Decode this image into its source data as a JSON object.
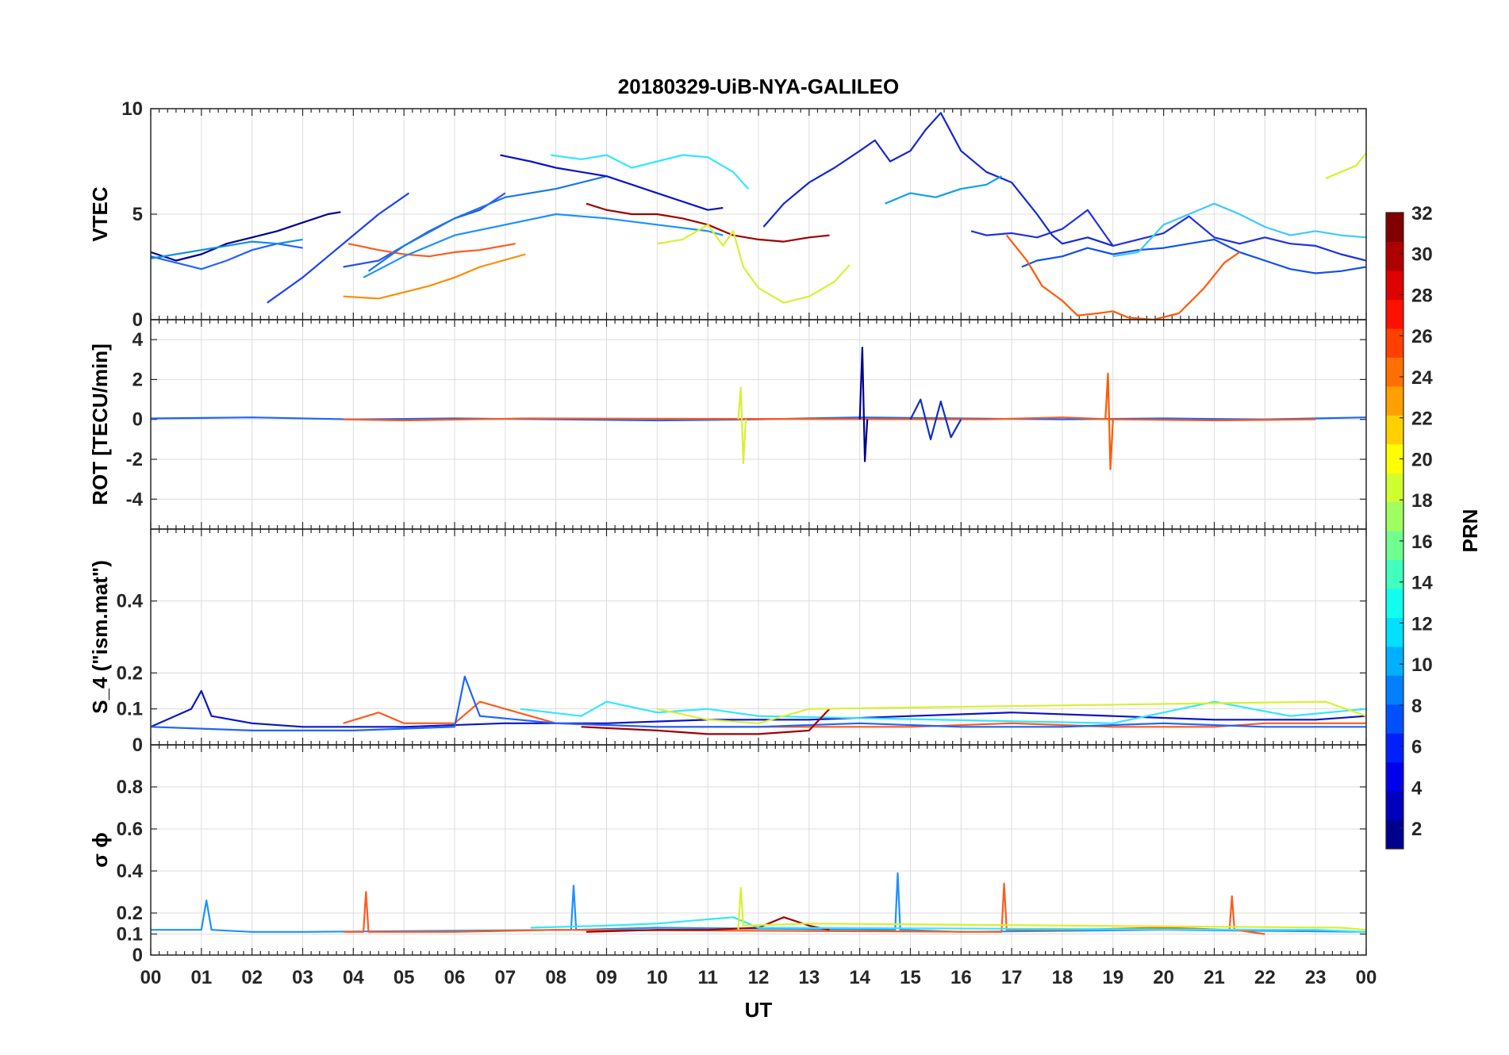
{
  "title": "20180329-UiB-NYA-GALILEO",
  "chart_data": [
    {
      "type": "line",
      "id": "vtec",
      "ylabel": "VTEC",
      "ylim": [
        0,
        10
      ],
      "yticks": [
        0,
        5,
        10
      ],
      "grid": true,
      "series": [
        {
          "color": "#00008f",
          "x": [
            0.0,
            0.5,
            1.0,
            1.5,
            2.0,
            2.5,
            3.0,
            3.5,
            3.75
          ],
          "y": [
            3.2,
            2.8,
            3.1,
            3.6,
            3.9,
            4.2,
            4.6,
            5.0,
            5.1
          ]
        },
        {
          "color": "#1e64ff",
          "x": [
            0.0,
            0.5,
            1.0,
            1.5,
            2.0,
            2.5,
            3.0
          ],
          "y": [
            3.0,
            2.7,
            2.4,
            2.8,
            3.3,
            3.6,
            3.4
          ]
        },
        {
          "color": "#1090e0",
          "x": [
            0.0,
            0.5,
            1.0,
            1.5,
            2.0,
            2.5,
            3.0
          ],
          "y": [
            2.9,
            3.1,
            3.3,
            3.5,
            3.7,
            3.6,
            3.8
          ]
        },
        {
          "color": "#1a40ff",
          "x": [
            2.3,
            3.0,
            3.5,
            4.0,
            4.5,
            5.1
          ],
          "y": [
            0.8,
            2.0,
            3.0,
            4.0,
            5.0,
            6.0
          ]
        },
        {
          "color": "#3050f0",
          "x": [
            3.8,
            4.5,
            5.0,
            5.5,
            6.0,
            6.5,
            7.0
          ],
          "y": [
            2.5,
            2.8,
            3.5,
            4.2,
            4.8,
            5.2,
            6.0
          ]
        },
        {
          "color": "#ff5a1e",
          "x": [
            3.9,
            4.5,
            5.0,
            5.5,
            6.0,
            6.5,
            7.2
          ],
          "y": [
            3.6,
            3.3,
            3.1,
            3.0,
            3.2,
            3.3,
            3.6
          ]
        },
        {
          "color": "#ff8c00",
          "x": [
            3.8,
            4.5,
            5.0,
            5.5,
            6.0,
            6.5,
            7.4
          ],
          "y": [
            1.1,
            1.0,
            1.3,
            1.6,
            2.0,
            2.5,
            3.1
          ]
        },
        {
          "color": "#1e90ff",
          "x": [
            4.2,
            5.0,
            6.0,
            7.0,
            8.0,
            9.0,
            10.0,
            11.0,
            11.3
          ],
          "y": [
            2.0,
            3.0,
            4.0,
            4.5,
            5.0,
            4.8,
            4.5,
            4.2,
            4.0
          ]
        },
        {
          "color": "#1878e8",
          "x": [
            4.3,
            5.0,
            6.0,
            7.0,
            8.0,
            9.0
          ],
          "y": [
            2.3,
            3.5,
            4.8,
            5.8,
            6.2,
            6.8
          ]
        },
        {
          "color": "#0a14c8",
          "x": [
            6.9,
            7.5,
            8.0,
            8.5,
            9.0,
            10.0,
            11.0,
            11.3
          ],
          "y": [
            7.8,
            7.5,
            7.2,
            7.0,
            6.8,
            6.0,
            5.2,
            5.3
          ]
        },
        {
          "color": "#32e6ff",
          "x": [
            7.9,
            8.5,
            9.0,
            9.5,
            10.0,
            10.5,
            11.0,
            11.5,
            11.8
          ],
          "y": [
            7.8,
            7.6,
            7.8,
            7.2,
            7.5,
            7.8,
            7.7,
            7.0,
            6.2
          ]
        },
        {
          "color": "#a00000",
          "x": [
            8.6,
            9.0,
            9.5,
            10.0,
            10.5,
            11.0,
            11.5,
            12.0,
            12.5,
            13.0,
            13.4
          ],
          "y": [
            5.5,
            5.2,
            5.0,
            5.0,
            4.8,
            4.5,
            4.0,
            3.8,
            3.7,
            3.9,
            4.0
          ]
        },
        {
          "color": "#d8f032",
          "x": [
            10.0,
            10.5,
            11.0,
            11.3,
            11.5,
            11.7,
            12.0,
            12.5,
            13.0,
            13.5,
            13.8
          ],
          "y": [
            3.6,
            3.8,
            4.5,
            3.5,
            4.2,
            2.5,
            1.5,
            0.8,
            1.1,
            1.8,
            2.6
          ]
        },
        {
          "color": "#1428d2",
          "x": [
            12.1,
            12.5,
            13.0,
            13.5,
            14.0,
            14.3,
            14.6,
            15.0,
            15.3,
            15.6,
            16.0,
            16.5,
            17.0,
            17.5,
            17.8,
            18.0,
            18.5,
            19.0
          ],
          "y": [
            4.4,
            5.5,
            6.5,
            7.2,
            8.0,
            8.5,
            7.5,
            8.0,
            9.0,
            9.8,
            8.0,
            7.0,
            6.5,
            5.0,
            4.0,
            3.6,
            3.9,
            3.5
          ]
        },
        {
          "color": "#10a0e8",
          "x": [
            14.5,
            15.0,
            15.5,
            16.0,
            16.5,
            16.8
          ],
          "y": [
            5.5,
            6.0,
            5.8,
            6.2,
            6.4,
            6.8
          ]
        },
        {
          "color": "#2030e0",
          "x": [
            16.2,
            16.5,
            17.0,
            17.5,
            18.0,
            18.5,
            19.0,
            19.5,
            20.0,
            20.5,
            21.0,
            21.5,
            22.0,
            22.5,
            23.0,
            23.5,
            24.0
          ],
          "y": [
            4.2,
            4.0,
            4.1,
            3.9,
            4.3,
            5.2,
            3.5,
            3.8,
            4.1,
            4.9,
            3.9,
            3.6,
            3.9,
            3.6,
            3.5,
            3.1,
            2.8
          ]
        },
        {
          "color": "#1050f0",
          "x": [
            17.2,
            17.5,
            18.0,
            18.5,
            19.0,
            19.5,
            20.0,
            20.5,
            21.0,
            21.5,
            22.0,
            22.5,
            23.0,
            23.5,
            24.0
          ],
          "y": [
            2.5,
            2.8,
            3.0,
            3.4,
            3.1,
            3.3,
            3.4,
            3.6,
            3.8,
            3.2,
            2.8,
            2.4,
            2.2,
            2.3,
            2.5
          ]
        },
        {
          "color": "#40c8ff",
          "x": [
            19.0,
            19.5,
            20.0,
            20.5,
            21.0,
            21.5,
            22.0,
            22.5,
            23.0,
            23.5,
            24.0
          ],
          "y": [
            3.0,
            3.2,
            4.5,
            5.0,
            5.5,
            5.0,
            4.4,
            4.0,
            4.2,
            4.0,
            3.9
          ]
        },
        {
          "color": "#ff5a00",
          "x": [
            16.9,
            17.3,
            17.6,
            18.0,
            18.3,
            18.7,
            19.0,
            19.3,
            19.8,
            20.3,
            20.8,
            21.2,
            21.5
          ],
          "y": [
            4.0,
            2.8,
            1.6,
            0.9,
            0.2,
            0.3,
            0.4,
            0.1,
            0.0,
            0.3,
            1.5,
            2.7,
            3.2
          ]
        },
        {
          "color": "#d8f032",
          "x": [
            23.2,
            23.5,
            23.8,
            24.0
          ],
          "y": [
            6.7,
            7.0,
            7.3,
            7.9
          ]
        }
      ]
    },
    {
      "type": "line",
      "id": "rot",
      "ylabel": "ROT [TECU/min]",
      "ylim": [
        -5.5,
        5.0
      ],
      "yticks": [
        -4,
        -2,
        0,
        2,
        4
      ],
      "grid": true,
      "series": [
        {
          "color": "#1e64ff",
          "x": [
            0.0,
            2.0,
            4.0,
            6.0,
            8.0,
            10.0,
            12.0,
            14.0,
            16.0,
            18.0,
            20.0,
            22.0,
            24.0
          ],
          "y": [
            0.05,
            0.1,
            0.0,
            0.05,
            0.0,
            -0.05,
            0.0,
            0.1,
            0.05,
            0.0,
            0.05,
            0.0,
            0.1
          ]
        },
        {
          "color": "#ff5a1e",
          "x": [
            3.8,
            5.0,
            7.4,
            16.5,
            18.0,
            19.0,
            21.0,
            23.0
          ],
          "y": [
            0.0,
            -0.05,
            0.05,
            0.0,
            0.1,
            0.0,
            -0.05,
            0.0
          ]
        },
        {
          "color": "#00008f",
          "x": [
            14.0,
            14.05,
            14.1,
            14.15
          ],
          "y": [
            0.0,
            3.6,
            -2.1,
            0.0
          ]
        },
        {
          "color": "#d8f032",
          "x": [
            11.6,
            11.65,
            11.7,
            11.75
          ],
          "y": [
            0.0,
            1.6,
            -2.2,
            0.0
          ]
        },
        {
          "color": "#ff5a00",
          "x": [
            18.85,
            18.9,
            18.95,
            19.0
          ],
          "y": [
            0.0,
            2.3,
            -2.5,
            0.0
          ]
        },
        {
          "color": "#1030c0",
          "x": [
            15.0,
            15.2,
            15.4,
            15.6,
            15.8,
            16.0
          ],
          "y": [
            0.0,
            1.0,
            -1.0,
            0.9,
            -0.9,
            0.0
          ]
        }
      ]
    },
    {
      "type": "line",
      "id": "s4",
      "ylabel": "S_4 (\"ism.mat\")",
      "ylim": [
        0,
        0.6
      ],
      "yticks": [
        0,
        0.1,
        0.2,
        0.4
      ],
      "grid": true,
      "series": [
        {
          "color": "#0a14c8",
          "x": [
            0.0,
            0.8,
            1.0,
            1.2,
            2.0,
            3.0,
            5.0,
            7.0,
            9.0,
            11.0,
            13.0,
            15.0,
            17.0,
            19.0,
            21.0,
            23.0,
            24.0
          ],
          "y": [
            0.05,
            0.1,
            0.15,
            0.08,
            0.06,
            0.05,
            0.05,
            0.06,
            0.06,
            0.07,
            0.07,
            0.08,
            0.09,
            0.08,
            0.07,
            0.07,
            0.08
          ]
        },
        {
          "color": "#ff5a1e",
          "x": [
            3.8,
            4.5,
            5.0,
            6.0,
            6.5,
            7.0,
            8.0,
            10.0,
            15.0,
            17.0,
            19.0,
            21.0,
            22.0,
            24.0
          ],
          "y": [
            0.06,
            0.09,
            0.06,
            0.06,
            0.12,
            0.1,
            0.06,
            0.05,
            0.05,
            0.06,
            0.05,
            0.05,
            0.06,
            0.06
          ]
        },
        {
          "color": "#1e64ff",
          "x": [
            0.0,
            2.0,
            4.0,
            6.0,
            6.2,
            6.5,
            8.0,
            10.0,
            12.0,
            14.0,
            16.0,
            18.0,
            20.0,
            22.0,
            24.0
          ],
          "y": [
            0.05,
            0.04,
            0.04,
            0.05,
            0.19,
            0.08,
            0.06,
            0.05,
            0.05,
            0.06,
            0.05,
            0.05,
            0.06,
            0.05,
            0.05
          ]
        },
        {
          "color": "#32e6ff",
          "x": [
            7.3,
            8.5,
            9.0,
            10.0,
            11.0,
            12.0,
            19.0,
            21.0,
            22.5,
            24.0
          ],
          "y": [
            0.1,
            0.08,
            0.12,
            0.09,
            0.1,
            0.08,
            0.06,
            0.12,
            0.08,
            0.1
          ]
        },
        {
          "color": "#a00000",
          "x": [
            8.5,
            10.0,
            11.0,
            12.0,
            13.0,
            13.4
          ],
          "y": [
            0.05,
            0.04,
            0.03,
            0.03,
            0.04,
            0.1
          ]
        },
        {
          "color": "#d8f032",
          "x": [
            10.0,
            11.0,
            12.0,
            13.0,
            23.2,
            24.0
          ],
          "y": [
            0.1,
            0.07,
            0.06,
            0.1,
            0.12,
            0.08
          ]
        }
      ]
    },
    {
      "type": "line",
      "id": "sigma-phi",
      "ylabel": "σ ϕ",
      "ylim": [
        0,
        1.0
      ],
      "yticks": [
        0,
        0.1,
        0.2,
        0.4,
        0.6,
        0.8
      ],
      "grid": true,
      "series": [
        {
          "color": "#1e90ff",
          "x": [
            0.0,
            1.0,
            1.1,
            1.2,
            2.0,
            3.0,
            8.3,
            8.35,
            8.4,
            10.0,
            14.7,
            14.75,
            14.8,
            16.0,
            20.0,
            24.0
          ],
          "y": [
            0.12,
            0.12,
            0.26,
            0.12,
            0.11,
            0.11,
            0.12,
            0.33,
            0.12,
            0.13,
            0.12,
            0.39,
            0.12,
            0.11,
            0.12,
            0.11
          ]
        },
        {
          "color": "#ff5a1e",
          "x": [
            3.8,
            4.2,
            4.25,
            4.3,
            6.0,
            8.0,
            16.8,
            16.85,
            16.9,
            18.0,
            20.0,
            21.3,
            21.35,
            21.4,
            22.0
          ],
          "y": [
            0.11,
            0.11,
            0.3,
            0.11,
            0.11,
            0.12,
            0.11,
            0.34,
            0.12,
            0.12,
            0.13,
            0.12,
            0.28,
            0.12,
            0.1
          ]
        },
        {
          "color": "#a00000",
          "x": [
            8.6,
            10.0,
            11.0,
            12.0,
            12.5,
            13.0,
            13.4
          ],
          "y": [
            0.11,
            0.12,
            0.12,
            0.13,
            0.18,
            0.14,
            0.12
          ]
        },
        {
          "color": "#32e6ff",
          "x": [
            7.5,
            9.0,
            10.0,
            11.0,
            11.5,
            12.0,
            22.0,
            23.0,
            24.0
          ],
          "y": [
            0.13,
            0.14,
            0.15,
            0.17,
            0.18,
            0.13,
            0.12,
            0.12,
            0.11
          ]
        },
        {
          "color": "#d8f032",
          "x": [
            11.6,
            11.65,
            11.7,
            13.0,
            23.5,
            24.0
          ],
          "y": [
            0.12,
            0.32,
            0.14,
            0.15,
            0.13,
            0.12
          ]
        }
      ]
    }
  ],
  "xaxis": {
    "label": "UT",
    "ticks": [
      "00",
      "01",
      "02",
      "03",
      "04",
      "05",
      "06",
      "07",
      "08",
      "09",
      "10",
      "11",
      "12",
      "13",
      "14",
      "15",
      "16",
      "17",
      "18",
      "19",
      "20",
      "21",
      "22",
      "23",
      "00"
    ],
    "xlim": [
      0,
      24
    ]
  },
  "colorbar": {
    "label": "PRN",
    "range": [
      1,
      32
    ],
    "ticks": [
      "2",
      "4",
      "6",
      "8",
      "10",
      "12",
      "14",
      "16",
      "18",
      "20",
      "22",
      "24",
      "26",
      "28",
      "30",
      "32"
    ],
    "colormap": "jet",
    "colors": [
      "#00008f",
      "#0000bf",
      "#0000ef",
      "#0020ff",
      "#0050ff",
      "#0080ff",
      "#00b0ff",
      "#00e0ff",
      "#10ffef",
      "#40ffbf",
      "#70ff8f",
      "#a0ff60",
      "#d0ff30",
      "#ffff00",
      "#ffd000",
      "#ffa000",
      "#ff7000",
      "#ff4000",
      "#ff1000",
      "#df0000",
      "#af0000",
      "#800000"
    ]
  }
}
